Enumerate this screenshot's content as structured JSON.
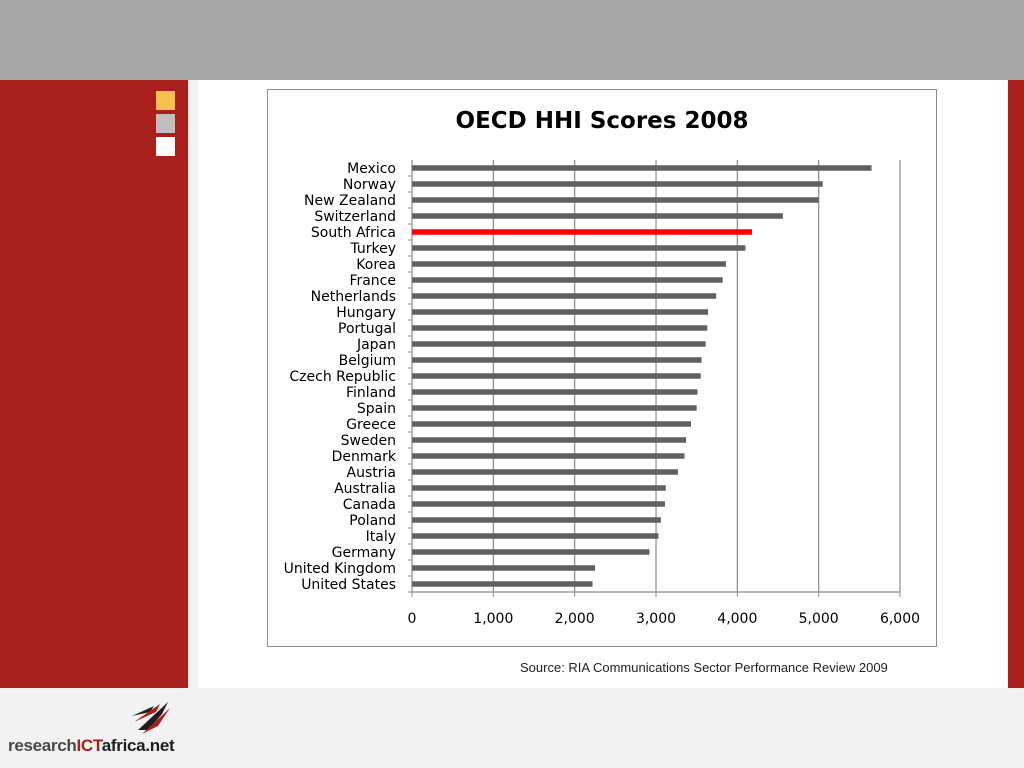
{
  "chart_data": {
    "type": "bar",
    "orientation": "horizontal",
    "title": "OECD HHI Scores 2008",
    "categories": [
      "Mexico",
      "Norway",
      "New Zealand",
      "Switzerland",
      "South Africa",
      "Turkey",
      "Korea",
      "France",
      "Netherlands",
      "Hungary",
      "Portugal",
      "Japan",
      "Belgium",
      "Czech Republic",
      "Finland",
      "Spain",
      "Greece",
      "Sweden",
      "Denmark",
      "Austria",
      "Australia",
      "Canada",
      "Poland",
      "Italy",
      "Germany",
      "United Kingdom",
      "United States"
    ],
    "values": [
      5650,
      5050,
      5000,
      4560,
      4180,
      4100,
      3860,
      3820,
      3740,
      3640,
      3630,
      3610,
      3560,
      3550,
      3510,
      3500,
      3430,
      3370,
      3350,
      3270,
      3120,
      3110,
      3060,
      3030,
      2920,
      2250,
      2220
    ],
    "highlight": "South Africa",
    "bar_color": "#606060",
    "highlight_color": "#ff0000",
    "xlim": [
      0,
      6000
    ],
    "xticks": [
      "0",
      "1,000",
      "2,000",
      "3,000",
      "4,000",
      "5,000",
      "6,000"
    ],
    "grid": true,
    "xlabel": "",
    "ylabel": ""
  },
  "source": "Source: RIA Communications Sector Performance Review 2009",
  "logo": {
    "part1": "research",
    "part2": "ICT",
    "part3": "africa",
    "part4": ".net"
  },
  "colors": {
    "brand_red": "#a81f1c",
    "header_gray": "#a6a6a6"
  }
}
